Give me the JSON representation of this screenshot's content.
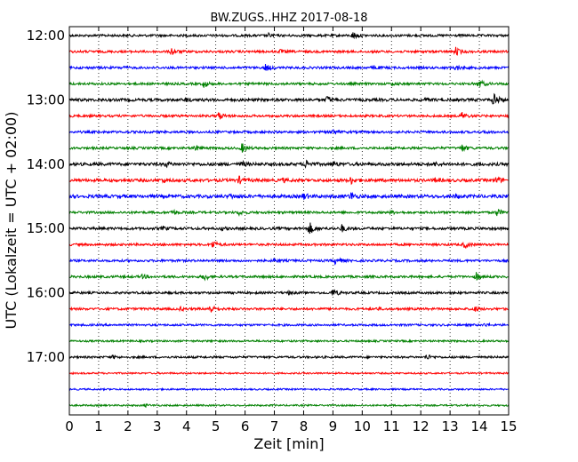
{
  "chart_data": {
    "type": "line",
    "title": "BW.ZUGS..HHZ 2017-08-18",
    "xlabel": "Zeit  [min]",
    "ylabel": "UTC (Lokalzeit = UTC + 02:00)",
    "xlim": [
      0,
      15
    ],
    "x_ticks": [
      "0",
      "1",
      "2",
      "3",
      "4",
      "5",
      "6",
      "7",
      "8",
      "9",
      "10",
      "11",
      "12",
      "13",
      "14",
      "15"
    ],
    "y_ticks": [
      "12:00",
      "13:00",
      "14:00",
      "15:00",
      "16:00",
      "17:00"
    ],
    "grid": "vertical dotted lines at each minute",
    "trace_colors": [
      "#000000",
      "#ff0000",
      "#0000ff",
      "#008000"
    ],
    "traces_per_hour": 4,
    "trace_interval_min": 15,
    "traces": [
      {
        "start": "12:00",
        "amp": 1.0,
        "events": [
          [
            6.8,
            1.8
          ],
          [
            9.7,
            4.0
          ]
        ]
      },
      {
        "start": "12:15",
        "amp": 1.0,
        "events": [
          [
            3.5,
            4.0
          ],
          [
            13.2,
            4.5
          ],
          [
            7.2,
            1.5
          ]
        ]
      },
      {
        "start": "12:30",
        "amp": 1.0,
        "events": [
          [
            6.7,
            4.0
          ],
          [
            10.4,
            2.0
          ],
          [
            13.2,
            3.0
          ],
          [
            1.8,
            1.3
          ]
        ]
      },
      {
        "start": "12:45",
        "amp": 1.0,
        "events": [
          [
            4.6,
            4.0
          ],
          [
            14.0,
            4.5
          ],
          [
            11.0,
            1.3
          ]
        ]
      },
      {
        "start": "13:00",
        "amp": 1.2,
        "events": [
          [
            14.5,
            7.5
          ],
          [
            8.8,
            4.0
          ],
          [
            4.0,
            1.8
          ],
          [
            12.2,
            1.5
          ]
        ]
      },
      {
        "start": "13:15",
        "amp": 1.0,
        "events": [
          [
            5.1,
            4.5
          ],
          [
            13.4,
            4.0
          ]
        ]
      },
      {
        "start": "13:30",
        "amp": 1.0,
        "events": [
          [
            9.0,
            3.0
          ],
          [
            14.2,
            1.3
          ]
        ]
      },
      {
        "start": "13:45",
        "amp": 1.0,
        "events": [
          [
            5.9,
            5.0
          ],
          [
            4.3,
            3.0
          ],
          [
            13.4,
            4.0
          ]
        ]
      },
      {
        "start": "14:00",
        "amp": 1.3,
        "events": [
          [
            3.3,
            2.5
          ],
          [
            5.9,
            2.2
          ],
          [
            8.1,
            4.0
          ],
          [
            9.0,
            2.5
          ],
          [
            12.5,
            1.5
          ]
        ]
      },
      {
        "start": "14:15",
        "amp": 1.3,
        "events": [
          [
            5.8,
            3.5
          ],
          [
            9.6,
            4.0
          ],
          [
            14.6,
            3.5
          ],
          [
            3.2,
            2.0
          ],
          [
            7.3,
            1.8
          ],
          [
            12.5,
            1.8
          ]
        ]
      },
      {
        "start": "14:30",
        "amp": 1.4,
        "events": [
          [
            9.6,
            4.5
          ],
          [
            8.0,
            3.0
          ],
          [
            5.5,
            2.0
          ],
          [
            13.2,
            2.0
          ]
        ]
      },
      {
        "start": "14:45",
        "amp": 1.0,
        "events": [
          [
            3.5,
            3.0
          ],
          [
            5.8,
            2.5
          ],
          [
            14.6,
            4.0
          ],
          [
            11.0,
            1.5
          ]
        ]
      },
      {
        "start": "15:00",
        "amp": 1.1,
        "events": [
          [
            8.2,
            7.0
          ],
          [
            9.3,
            4.0
          ],
          [
            3.2,
            1.8
          ],
          [
            5.2,
            1.5
          ]
        ]
      },
      {
        "start": "15:15",
        "amp": 1.0,
        "events": [
          [
            4.9,
            4.5
          ],
          [
            13.5,
            4.0
          ]
        ]
      },
      {
        "start": "15:30",
        "amp": 1.0,
        "events": [
          [
            9.1,
            4.5
          ],
          [
            7.0,
            1.5
          ]
        ]
      },
      {
        "start": "15:45",
        "amp": 1.0,
        "events": [
          [
            4.6,
            4.0
          ],
          [
            13.9,
            4.5
          ],
          [
            2.5,
            2.0
          ]
        ]
      },
      {
        "start": "16:00",
        "amp": 1.0,
        "events": [
          [
            9.0,
            4.5
          ],
          [
            7.5,
            1.5
          ]
        ]
      },
      {
        "start": "16:15",
        "amp": 1.0,
        "events": [
          [
            4.8,
            5.0
          ],
          [
            13.8,
            3.0
          ],
          [
            3.8,
            1.5
          ],
          [
            10.5,
            1.3
          ]
        ]
      },
      {
        "start": "16:30",
        "amp": 0.9,
        "events": [
          [
            14.2,
            1.5
          ]
        ]
      },
      {
        "start": "16:45",
        "amp": 0.8,
        "events": []
      },
      {
        "start": "17:00",
        "amp": 0.9,
        "events": [
          [
            12.2,
            3.0
          ],
          [
            1.5,
            1.5
          ]
        ]
      },
      {
        "start": "17:15",
        "amp": 0.7,
        "events": []
      },
      {
        "start": "17:30",
        "amp": 0.7,
        "events": []
      },
      {
        "start": "17:45",
        "amp": 0.7,
        "events": [
          [
            2.6,
            1.3
          ]
        ]
      }
    ]
  }
}
